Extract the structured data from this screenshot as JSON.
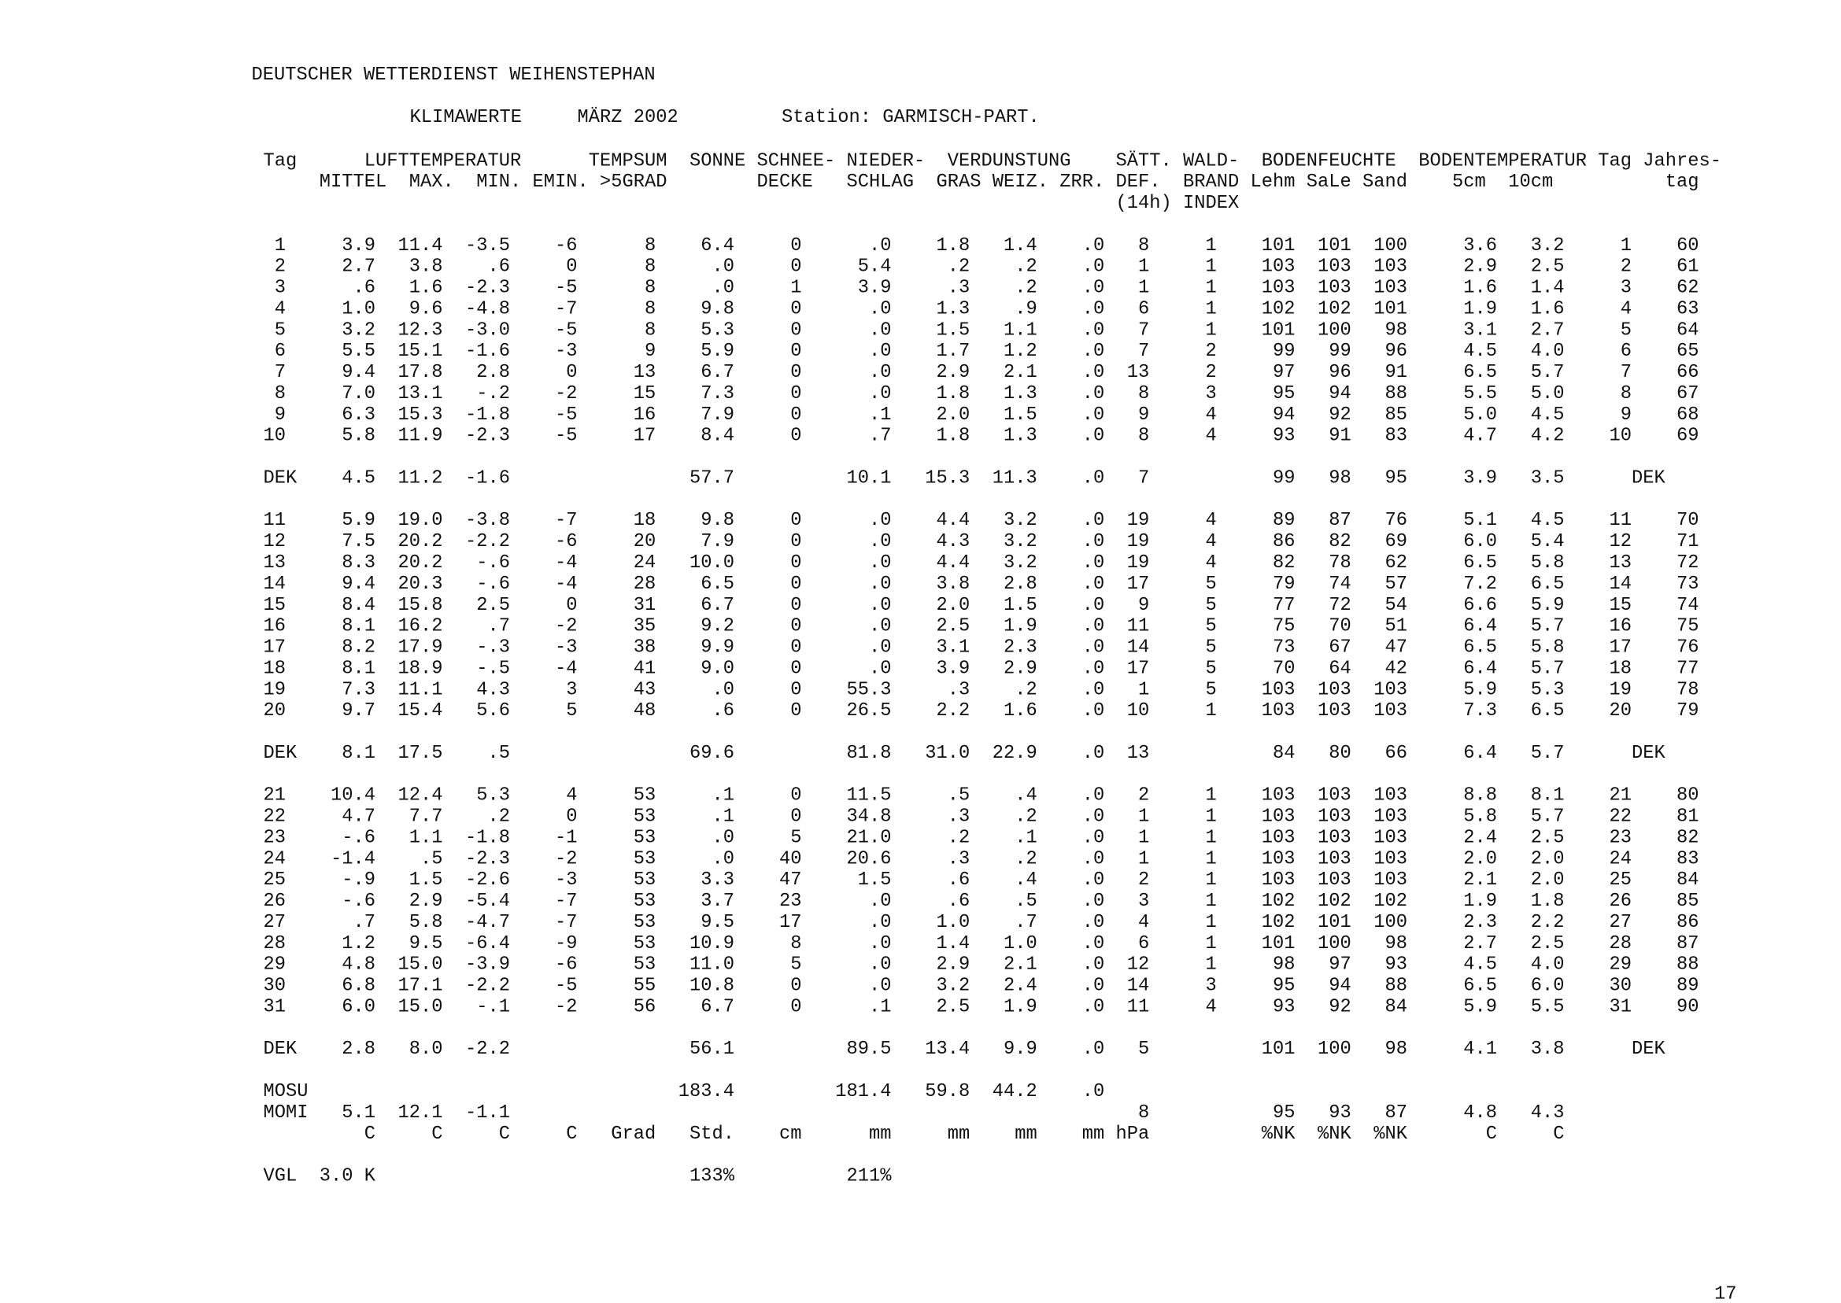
{
  "header": {
    "org": "DEUTSCHER WETTERDIENST WEIHENSTEPHAN",
    "title": "KLIMAWERTE",
    "month": "MÄRZ  2002",
    "station": "Station: GARMISCH-PART."
  },
  "column_headers": [
    [
      "Tag",
      "LUFTTEMPERATUR",
      "TEMPSUM",
      "SONNE",
      "SCHNEE-",
      "NIEDER-",
      "VERDUNSTUNG",
      "SÄTT.",
      "WALD-",
      "BODENFEUCHTE",
      "BODENTEMPERATUR",
      "Tag",
      "Jahres-"
    ],
    [
      "MITTEL",
      "MAX.",
      "MIN.",
      "EMIN.",
      ">5GRAD",
      "DECKE",
      "SCHLAG",
      "GRAS",
      "WEIZ.",
      "ZRR.",
      "DEF.",
      "BRAND",
      "Lehm",
      "SaLe",
      "Sand",
      "5cm",
      "10cm",
      "tag"
    ],
    [
      "(14h)",
      "INDEX"
    ]
  ],
  "blocks": [
    [
      [
        "1",
        "3.9",
        "11.4",
        "-3.5",
        "-6",
        "8",
        "6.4",
        "0",
        ".0",
        "1.8",
        "1.4",
        ".0",
        "8",
        "1",
        "101",
        "101",
        "100",
        "3.6",
        "3.2",
        "1",
        "60"
      ],
      [
        "2",
        "2.7",
        "3.8",
        ".6",
        "0",
        "8",
        ".0",
        "0",
        "5.4",
        ".2",
        ".2",
        ".0",
        "1",
        "1",
        "103",
        "103",
        "103",
        "2.9",
        "2.5",
        "2",
        "61"
      ],
      [
        "3",
        ".6",
        "1.6",
        "-2.3",
        "-5",
        "8",
        ".0",
        "1",
        "3.9",
        ".3",
        ".2",
        ".0",
        "1",
        "1",
        "103",
        "103",
        "103",
        "1.6",
        "1.4",
        "3",
        "62"
      ],
      [
        "4",
        "1.0",
        "9.6",
        "-4.8",
        "-7",
        "8",
        "9.8",
        "0",
        ".0",
        "1.3",
        ".9",
        ".0",
        "6",
        "1",
        "102",
        "102",
        "101",
        "1.9",
        "1.6",
        "4",
        "63"
      ],
      [
        "5",
        "3.2",
        "12.3",
        "-3.0",
        "-5",
        "8",
        "5.3",
        "0",
        ".0",
        "1.5",
        "1.1",
        ".0",
        "7",
        "1",
        "101",
        "100",
        "98",
        "3.1",
        "2.7",
        "5",
        "64"
      ],
      [
        "6",
        "5.5",
        "15.1",
        "-1.6",
        "-3",
        "9",
        "5.9",
        "0",
        ".0",
        "1.7",
        "1.2",
        ".0",
        "7",
        "2",
        "99",
        "99",
        "96",
        "4.5",
        "4.0",
        "6",
        "65"
      ],
      [
        "7",
        "9.4",
        "17.8",
        "2.8",
        "0",
        "13",
        "6.7",
        "0",
        ".0",
        "2.9",
        "2.1",
        ".0",
        "13",
        "2",
        "97",
        "96",
        "91",
        "6.5",
        "5.7",
        "7",
        "66"
      ],
      [
        "8",
        "7.0",
        "13.1",
        "-.2",
        "-2",
        "15",
        "7.3",
        "0",
        ".0",
        "1.8",
        "1.3",
        ".0",
        "8",
        "3",
        "95",
        "94",
        "88",
        "5.5",
        "5.0",
        "8",
        "67"
      ],
      [
        "9",
        "6.3",
        "15.3",
        "-1.8",
        "-5",
        "16",
        "7.9",
        "0",
        ".1",
        "2.0",
        "1.5",
        ".0",
        "9",
        "4",
        "94",
        "92",
        "85",
        "5.0",
        "4.5",
        "9",
        "68"
      ],
      [
        "10",
        "5.8",
        "11.9",
        "-2.3",
        "-5",
        "17",
        "8.4",
        "0",
        ".7",
        "1.8",
        "1.3",
        ".0",
        "8",
        "4",
        "93",
        "91",
        "83",
        "4.7",
        "4.2",
        "10",
        "69"
      ]
    ],
    [
      [
        "DEK",
        "4.5",
        "11.2",
        "-1.6",
        null,
        null,
        "57.7",
        null,
        "10.1",
        "15.3",
        "11.3",
        ".0",
        "7",
        null,
        "99",
        "98",
        "95",
        "3.9",
        "3.5",
        "DEK"
      ]
    ],
    [
      [
        "11",
        "5.9",
        "19.0",
        "-3.8",
        "-7",
        "18",
        "9.8",
        "0",
        ".0",
        "4.4",
        "3.2",
        ".0",
        "19",
        "4",
        "89",
        "87",
        "76",
        "5.1",
        "4.5",
        "11",
        "70"
      ],
      [
        "12",
        "7.5",
        "20.2",
        "-2.2",
        "-6",
        "20",
        "7.9",
        "0",
        ".0",
        "4.3",
        "3.2",
        ".0",
        "19",
        "4",
        "86",
        "82",
        "69",
        "6.0",
        "5.4",
        "12",
        "71"
      ],
      [
        "13",
        "8.3",
        "20.2",
        "-.6",
        "-4",
        "24",
        "10.0",
        "0",
        ".0",
        "4.4",
        "3.2",
        ".0",
        "19",
        "4",
        "82",
        "78",
        "62",
        "6.5",
        "5.8",
        "13",
        "72"
      ],
      [
        "14",
        "9.4",
        "20.3",
        "-.6",
        "-4",
        "28",
        "6.5",
        "0",
        ".0",
        "3.8",
        "2.8",
        ".0",
        "17",
        "5",
        "79",
        "74",
        "57",
        "7.2",
        "6.5",
        "14",
        "73"
      ],
      [
        "15",
        "8.4",
        "15.8",
        "2.5",
        "0",
        "31",
        "6.7",
        "0",
        ".0",
        "2.0",
        "1.5",
        ".0",
        "9",
        "5",
        "77",
        "72",
        "54",
        "6.6",
        "5.9",
        "15",
        "74"
      ],
      [
        "16",
        "8.1",
        "16.2",
        ".7",
        "-2",
        "35",
        "9.2",
        "0",
        ".0",
        "2.5",
        "1.9",
        ".0",
        "11",
        "5",
        "75",
        "70",
        "51",
        "6.4",
        "5.7",
        "16",
        "75"
      ],
      [
        "17",
        "8.2",
        "17.9",
        "-.3",
        "-3",
        "38",
        "9.9",
        "0",
        ".0",
        "3.1",
        "2.3",
        ".0",
        "14",
        "5",
        "73",
        "67",
        "47",
        "6.5",
        "5.8",
        "17",
        "76"
      ],
      [
        "18",
        "8.1",
        "18.9",
        "-.5",
        "-4",
        "41",
        "9.0",
        "0",
        ".0",
        "3.9",
        "2.9",
        ".0",
        "17",
        "5",
        "70",
        "64",
        "42",
        "6.4",
        "5.7",
        "18",
        "77"
      ],
      [
        "19",
        "7.3",
        "11.1",
        "4.3",
        "3",
        "43",
        ".0",
        "0",
        "55.3",
        ".3",
        ".2",
        ".0",
        "1",
        "5",
        "103",
        "103",
        "103",
        "5.9",
        "5.3",
        "19",
        "78"
      ],
      [
        "20",
        "9.7",
        "15.4",
        "5.6",
        "5",
        "48",
        ".6",
        "0",
        "26.5",
        "2.2",
        "1.6",
        ".0",
        "10",
        "1",
        "103",
        "103",
        "103",
        "7.3",
        "6.5",
        "20",
        "79"
      ]
    ],
    [
      [
        "DEK",
        "8.1",
        "17.5",
        ".5",
        null,
        null,
        "69.6",
        null,
        "81.8",
        "31.0",
        "22.9",
        ".0",
        "13",
        null,
        "84",
        "80",
        "66",
        "6.4",
        "5.7",
        "DEK"
      ]
    ],
    [
      [
        "21",
        "10.4",
        "12.4",
        "5.3",
        "4",
        "53",
        ".1",
        "0",
        "11.5",
        ".5",
        ".4",
        ".0",
        "2",
        "1",
        "103",
        "103",
        "103",
        "8.8",
        "8.1",
        "21",
        "80"
      ],
      [
        "22",
        "4.7",
        "7.7",
        ".2",
        "0",
        "53",
        ".1",
        "0",
        "34.8",
        ".3",
        ".2",
        ".0",
        "1",
        "1",
        "103",
        "103",
        "103",
        "5.8",
        "5.7",
        "22",
        "81"
      ],
      [
        "23",
        "-.6",
        "1.1",
        "-1.8",
        "-1",
        "53",
        ".0",
        "5",
        "21.0",
        ".2",
        ".1",
        ".0",
        "1",
        "1",
        "103",
        "103",
        "103",
        "2.4",
        "2.5",
        "23",
        "82"
      ],
      [
        "24",
        "-1.4",
        ".5",
        "-2.3",
        "-2",
        "53",
        ".0",
        "40",
        "20.6",
        ".3",
        ".2",
        ".0",
        "1",
        "1",
        "103",
        "103",
        "103",
        "2.0",
        "2.0",
        "24",
        "83"
      ],
      [
        "25",
        "-.9",
        "1.5",
        "-2.6",
        "-3",
        "53",
        "3.3",
        "47",
        "1.5",
        ".6",
        ".4",
        ".0",
        "2",
        "1",
        "103",
        "103",
        "103",
        "2.1",
        "2.0",
        "25",
        "84"
      ],
      [
        "26",
        "-.6",
        "2.9",
        "-5.4",
        "-7",
        "53",
        "3.7",
        "23",
        ".0",
        ".6",
        ".5",
        ".0",
        "3",
        "1",
        "102",
        "102",
        "102",
        "1.9",
        "1.8",
        "26",
        "85"
      ],
      [
        "27",
        ".7",
        "5.8",
        "-4.7",
        "-7",
        "53",
        "9.5",
        "17",
        ".0",
        "1.0",
        ".7",
        ".0",
        "4",
        "1",
        "102",
        "101",
        "100",
        "2.3",
        "2.2",
        "27",
        "86"
      ],
      [
        "28",
        "1.2",
        "9.5",
        "-6.4",
        "-9",
        "53",
        "10.9",
        "8",
        ".0",
        "1.4",
        "1.0",
        ".0",
        "6",
        "1",
        "101",
        "100",
        "98",
        "2.7",
        "2.5",
        "28",
        "87"
      ],
      [
        "29",
        "4.8",
        "15.0",
        "-3.9",
        "-6",
        "53",
        "11.0",
        "5",
        ".0",
        "2.9",
        "2.1",
        ".0",
        "12",
        "1",
        "98",
        "97",
        "93",
        "4.5",
        "4.0",
        "29",
        "88"
      ],
      [
        "30",
        "6.8",
        "17.1",
        "-2.2",
        "-5",
        "55",
        "10.8",
        "0",
        ".0",
        "3.2",
        "2.4",
        ".0",
        "14",
        "3",
        "95",
        "94",
        "88",
        "6.5",
        "6.0",
        "30",
        "89"
      ],
      [
        "31",
        "6.0",
        "15.0",
        "-.1",
        "-2",
        "56",
        "6.7",
        "0",
        ".1",
        "2.5",
        "1.9",
        ".0",
        "11",
        "4",
        "93",
        "92",
        "84",
        "5.9",
        "5.5",
        "31",
        "90"
      ]
    ],
    [
      [
        "DEK",
        "2.8",
        "8.0",
        "-2.2",
        null,
        null,
        "56.1",
        null,
        "89.5",
        "13.4",
        "9.9",
        ".0",
        "5",
        null,
        "101",
        "100",
        "98",
        "4.1",
        "3.8",
        "DEK"
      ]
    ],
    [
      [
        "MOSU",
        null,
        null,
        null,
        null,
        null,
        "183.4",
        null,
        "181.4",
        "59.8",
        "44.2",
        ".0"
      ],
      [
        "MOMI",
        "5.1",
        "12.1",
        "-1.1",
        null,
        null,
        null,
        null,
        null,
        null,
        null,
        null,
        "8",
        null,
        "95",
        "93",
        "87",
        "4.8",
        "4.3"
      ],
      [
        null,
        "C",
        "C",
        "C",
        "C",
        "Grad",
        "Std.",
        "cm",
        "mm",
        "mm",
        "mm",
        "mm",
        "hPa",
        null,
        "%NK",
        "%NK",
        "%NK",
        "C",
        "C"
      ]
    ],
    [
      [
        "VGL",
        "3.0 K",
        null,
        null,
        null,
        null,
        "133%",
        null,
        "211%"
      ]
    ]
  ],
  "page_number": "17"
}
